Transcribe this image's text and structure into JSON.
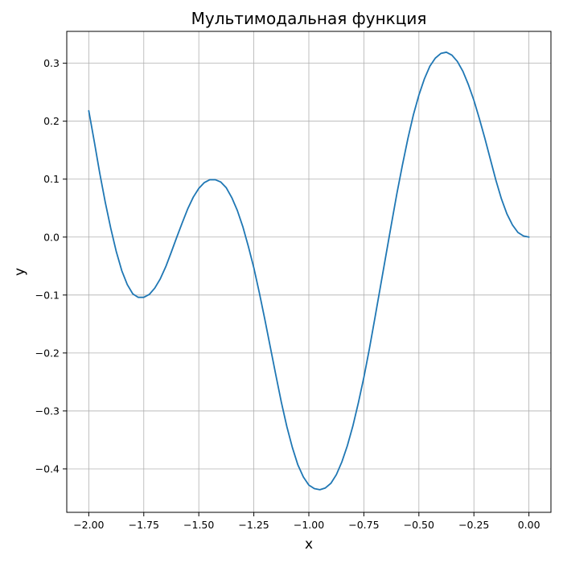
{
  "chart_data": {
    "type": "line",
    "title": "Мультимодальная функция",
    "xlabel": "x",
    "ylabel": "y",
    "xlim": [
      -2.1,
      0.1
    ],
    "ylim": [
      -0.475,
      0.355
    ],
    "grid": true,
    "x_ticks": [
      -2.0,
      -1.75,
      -1.5,
      -1.25,
      -1.0,
      -0.75,
      -0.5,
      -0.25,
      0.0
    ],
    "x_tick_labels": [
      "−2.00",
      "−1.75",
      "−1.50",
      "−1.25",
      "−1.00",
      "−0.75",
      "−0.50",
      "−0.25",
      "0.00"
    ],
    "y_ticks": [
      -0.4,
      -0.3,
      -0.2,
      -0.1,
      0.0,
      0.1,
      0.2,
      0.3
    ],
    "y_tick_labels": [
      "−0.4",
      "−0.3",
      "−0.2",
      "−0.1",
      "0.0",
      "0.1",
      "0.2",
      "0.3"
    ],
    "series": [
      {
        "color": "#1f77b4",
        "points": [
          [
            -2.0,
            0.218
          ],
          [
            -1.975,
            0.165
          ],
          [
            -1.95,
            0.11
          ],
          [
            -1.925,
            0.06
          ],
          [
            -1.9,
            0.015
          ],
          [
            -1.875,
            -0.025
          ],
          [
            -1.85,
            -0.058
          ],
          [
            -1.825,
            -0.082
          ],
          [
            -1.8,
            -0.098
          ],
          [
            -1.775,
            -0.104
          ],
          [
            -1.75,
            -0.104
          ],
          [
            -1.725,
            -0.099
          ],
          [
            -1.7,
            -0.088
          ],
          [
            -1.675,
            -0.072
          ],
          [
            -1.65,
            -0.051
          ],
          [
            -1.625,
            -0.026
          ],
          [
            -1.6,
            0.0
          ],
          [
            -1.575,
            0.025
          ],
          [
            -1.55,
            0.049
          ],
          [
            -1.525,
            0.069
          ],
          [
            -1.5,
            0.084
          ],
          [
            -1.475,
            0.094
          ],
          [
            -1.45,
            0.099
          ],
          [
            -1.425,
            0.099
          ],
          [
            -1.4,
            0.095
          ],
          [
            -1.375,
            0.085
          ],
          [
            -1.35,
            0.068
          ],
          [
            -1.325,
            0.046
          ],
          [
            -1.3,
            0.018
          ],
          [
            -1.275,
            -0.016
          ],
          [
            -1.25,
            -0.053
          ],
          [
            -1.225,
            -0.096
          ],
          [
            -1.2,
            -0.142
          ],
          [
            -1.175,
            -0.19
          ],
          [
            -1.15,
            -0.238
          ],
          [
            -1.125,
            -0.285
          ],
          [
            -1.1,
            -0.327
          ],
          [
            -1.075,
            -0.363
          ],
          [
            -1.05,
            -0.393
          ],
          [
            -1.025,
            -0.414
          ],
          [
            -1.0,
            -0.428
          ],
          [
            -0.975,
            -0.434
          ],
          [
            -0.95,
            -0.436
          ],
          [
            -0.925,
            -0.433
          ],
          [
            -0.9,
            -0.425
          ],
          [
            -0.875,
            -0.41
          ],
          [
            -0.85,
            -0.388
          ],
          [
            -0.825,
            -0.36
          ],
          [
            -0.8,
            -0.326
          ],
          [
            -0.775,
            -0.286
          ],
          [
            -0.75,
            -0.242
          ],
          [
            -0.725,
            -0.193
          ],
          [
            -0.7,
            -0.14
          ],
          [
            -0.675,
            -0.086
          ],
          [
            -0.65,
            -0.032
          ],
          [
            -0.625,
            0.022
          ],
          [
            -0.6,
            0.075
          ],
          [
            -0.575,
            0.124
          ],
          [
            -0.55,
            0.17
          ],
          [
            -0.525,
            0.211
          ],
          [
            -0.5,
            0.245
          ],
          [
            -0.475,
            0.273
          ],
          [
            -0.45,
            0.295
          ],
          [
            -0.425,
            0.309
          ],
          [
            -0.4,
            0.317
          ],
          [
            -0.375,
            0.319
          ],
          [
            -0.35,
            0.314
          ],
          [
            -0.325,
            0.303
          ],
          [
            -0.3,
            0.286
          ],
          [
            -0.275,
            0.263
          ],
          [
            -0.25,
            0.236
          ],
          [
            -0.225,
            0.204
          ],
          [
            -0.2,
            0.17
          ],
          [
            -0.175,
            0.134
          ],
          [
            -0.15,
            0.098
          ],
          [
            -0.125,
            0.066
          ],
          [
            -0.1,
            0.04
          ],
          [
            -0.075,
            0.021
          ],
          [
            -0.05,
            0.008
          ],
          [
            -0.025,
            0.002
          ],
          [
            0.0,
            0.0
          ]
        ]
      }
    ]
  }
}
